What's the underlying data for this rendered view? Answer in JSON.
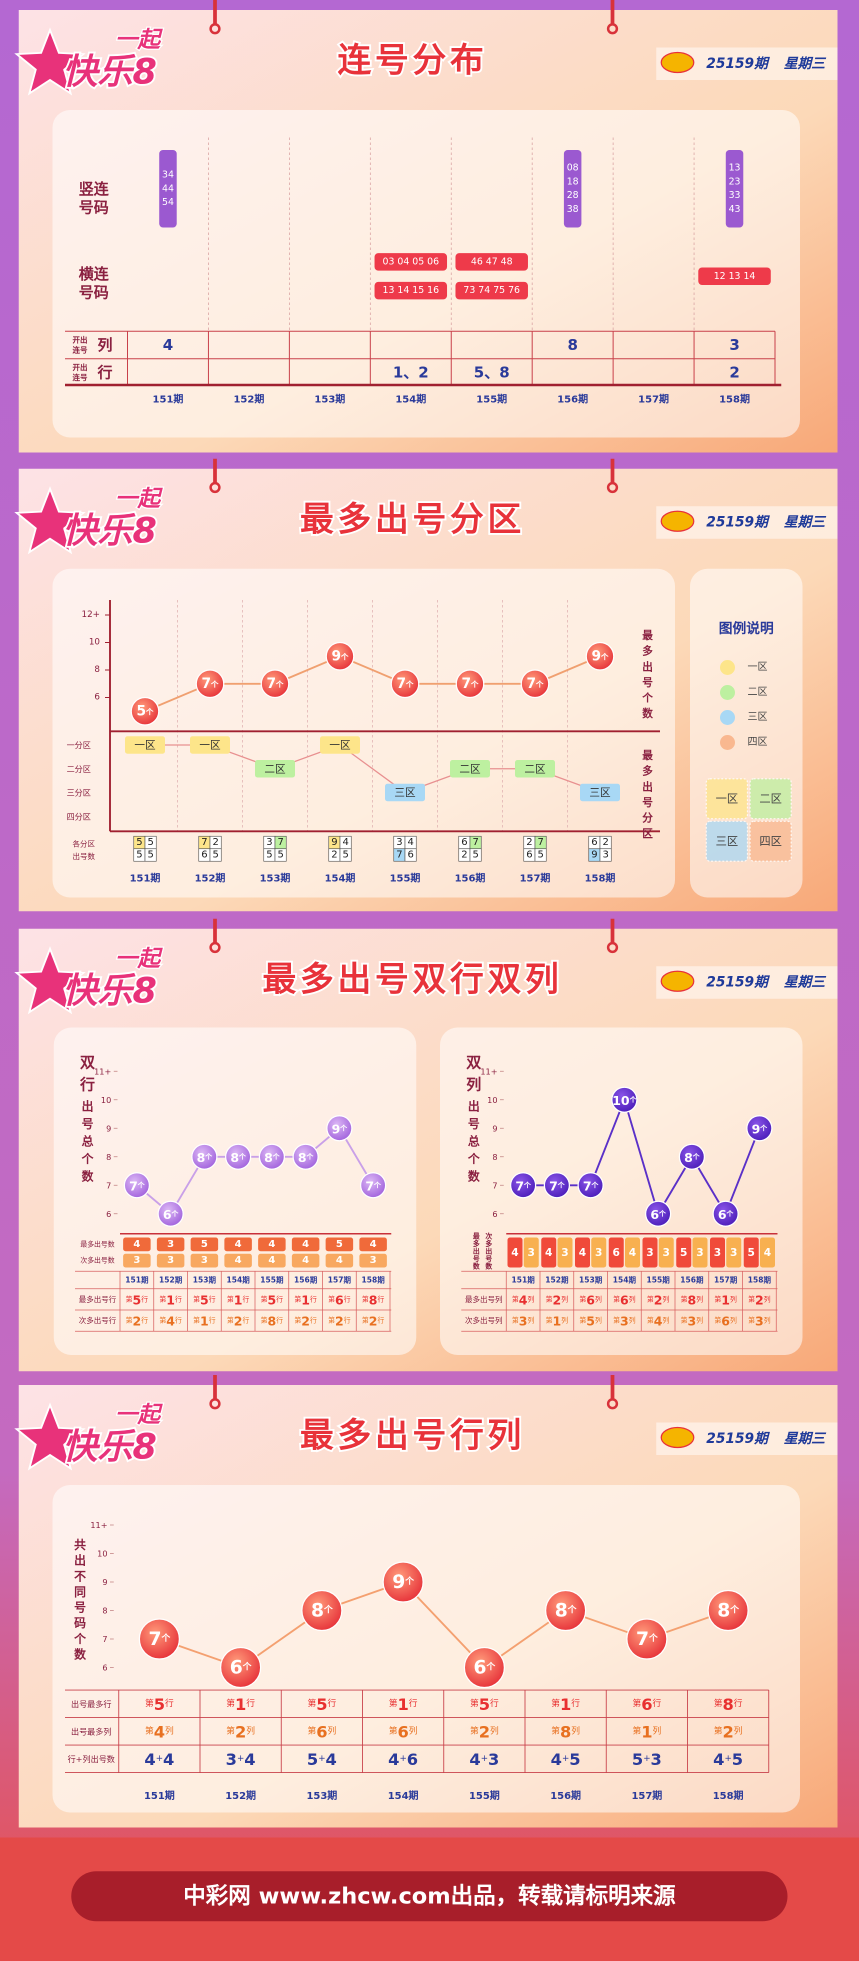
{
  "header": {
    "logo_top": "一起",
    "logo_main": "快乐8",
    "issue": "25159期",
    "weekday": "星期三"
  },
  "periods": [
    "151期",
    "152期",
    "153期",
    "154期",
    "155期",
    "156期",
    "157期",
    "158期"
  ],
  "consecutive": {
    "title": "连号分布",
    "vertical_label": [
      "竖连",
      "号码"
    ],
    "horizontal_label": [
      "横连",
      "号码"
    ],
    "col_label": {
      "small": [
        "开出",
        "连号"
      ],
      "big": "列"
    },
    "row_label": {
      "small": [
        "开出",
        "连号"
      ],
      "big": "行"
    },
    "vertical": [
      [
        "34",
        "44",
        "54"
      ],
      [],
      [],
      [],
      [],
      [
        "08",
        "18",
        "28",
        "38"
      ],
      [],
      [
        "13",
        "23",
        "33",
        "43"
      ]
    ],
    "horizontal": [
      [],
      [],
      [],
      [
        "03 04 05 06",
        "13 14 15 16"
      ],
      [
        "46 47 48",
        "73 74 75 76"
      ],
      [],
      [],
      [
        "12 13 14"
      ]
    ],
    "columns": [
      4,
      null,
      null,
      null,
      null,
      8,
      null,
      3
    ],
    "rows": [
      null,
      null,
      null,
      "1、2",
      "5、8",
      null,
      null,
      "2"
    ]
  },
  "zones": {
    "title": "最多出号分区",
    "unit": "个",
    "yticks": [
      {
        "value": 12,
        "label": "12+"
      },
      10,
      8,
      6
    ],
    "counts": [
      5,
      7,
      7,
      9,
      7,
      7,
      7,
      9
    ],
    "zone_levels": [
      "一分区",
      "二分区",
      "三分区",
      "四分区"
    ],
    "zones": [
      "一区",
      "一区",
      "二区",
      "一区",
      "三区",
      "二区",
      "二区",
      "三区"
    ],
    "count_label": [
      "各分区",
      "出号数"
    ],
    "right_labels": [
      "最多出号个数",
      "最多出号分区"
    ],
    "grid": [
      [
        5,
        5,
        5,
        5
      ],
      [
        7,
        2,
        6,
        5
      ],
      [
        3,
        7,
        5,
        5
      ],
      [
        9,
        4,
        2,
        5
      ],
      [
        3,
        4,
        7,
        6
      ],
      [
        6,
        7,
        2,
        5
      ],
      [
        2,
        7,
        6,
        5
      ],
      [
        6,
        2,
        9,
        3
      ]
    ],
    "legend_title": "图例说明",
    "legend": [
      {
        "name": "一区",
        "color": "#fde58a"
      },
      {
        "name": "二区",
        "color": "#bdf0a0"
      },
      {
        "name": "三区",
        "color": "#a8d8f5"
      },
      {
        "name": "四区",
        "color": "#f9b890"
      }
    ]
  },
  "double": {
    "title": "最多出号双行双列",
    "unit": "个",
    "charts": [
      {
        "ylabel": "双行出号总个数",
        "yticks": [
          {
            "value": 11,
            "label": "11+"
          },
          10,
          9,
          8,
          7,
          6
        ],
        "values": [
          7,
          6,
          8,
          8,
          8,
          8,
          9,
          7
        ],
        "color": "#c9a0e8",
        "top_label": "最多出号数",
        "second_label": "次多出号数",
        "top": [
          4,
          3,
          5,
          4,
          4,
          4,
          5,
          4
        ],
        "second": [
          3,
          3,
          3,
          4,
          4,
          4,
          4,
          3
        ],
        "row_labels": [
          "最多出号行",
          "次多出号行"
        ],
        "rows": [
          [
            "第5行",
            "第1行",
            "第5行",
            "第1行",
            "第5行",
            "第1行",
            "第6行",
            "第8行"
          ],
          [
            "第2行",
            "第4行",
            "第1行",
            "第2行",
            "第8行",
            "第2行",
            "第2行",
            "第2行"
          ]
        ]
      },
      {
        "ylabel": "双列出号总个数",
        "yticks": [
          {
            "value": 11,
            "label": "11+"
          },
          10,
          9,
          8,
          7,
          6
        ],
        "values": [
          7,
          7,
          7,
          10,
          6,
          8,
          6,
          9
        ],
        "color": "#5a30c8",
        "top_label": "最多出号数",
        "second_label": "次多出号数",
        "top": [
          4,
          4,
          4,
          6,
          3,
          5,
          3,
          5
        ],
        "second": [
          3,
          3,
          3,
          4,
          3,
          3,
          3,
          4
        ],
        "row_labels": [
          "最多出号列",
          "次多出号列"
        ],
        "rows": [
          [
            "第4列",
            "第2列",
            "第6列",
            "第6列",
            "第2列",
            "第8列",
            "第1列",
            "第2列"
          ],
          [
            "第3列",
            "第1列",
            "第5列",
            "第3列",
            "第4列",
            "第3列",
            "第6列",
            "第3列"
          ]
        ]
      }
    ]
  },
  "rowcol": {
    "title": "最多出号行列",
    "unit": "个",
    "ylabel": "共出不同号码个数",
    "yticks": [
      {
        "value": 11,
        "label": "11+"
      },
      10,
      9,
      8,
      7,
      6
    ],
    "values": [
      7,
      6,
      8,
      9,
      6,
      8,
      7,
      8
    ],
    "color": "#f4a070",
    "row_labels": [
      "出号最多行",
      "出号最多列",
      "行+列出号数"
    ],
    "rows": [
      [
        "第5行",
        "第1行",
        "第5行",
        "第1行",
        "第5行",
        "第1行",
        "第6行",
        "第8行"
      ],
      [
        "第4列",
        "第2列",
        "第6列",
        "第6列",
        "第2列",
        "第8列",
        "第1列",
        "第2列"
      ],
      [
        "4+4",
        "3+4",
        "5+4",
        "4+6",
        "4+3",
        "4+5",
        "5+3",
        "4+5"
      ]
    ]
  },
  "footer": "中彩网 www.zhcw.com出品，转载请标明来源"
}
